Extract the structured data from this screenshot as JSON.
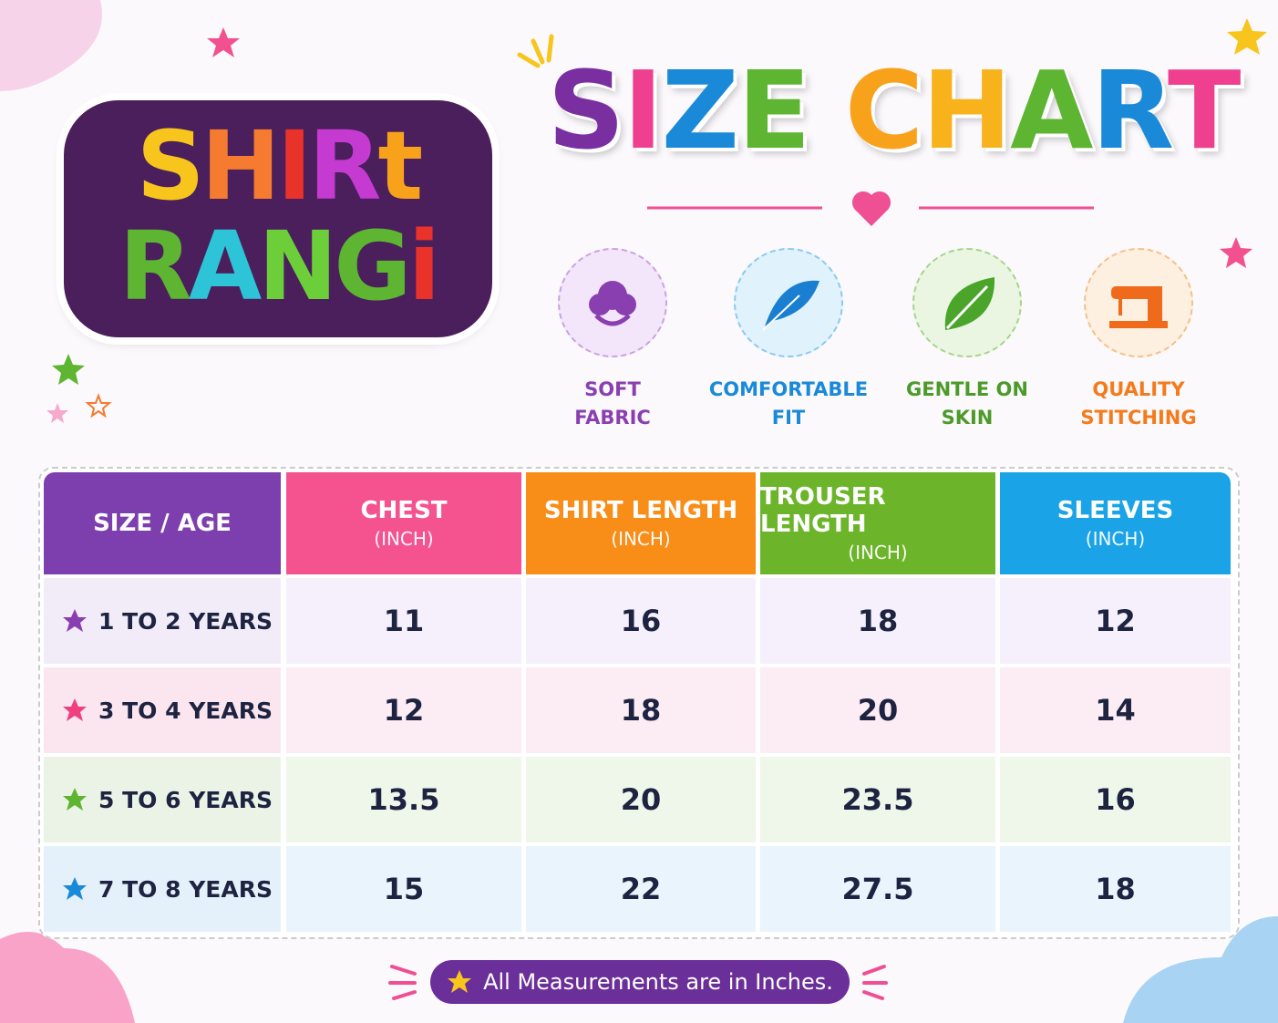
{
  "logo": {
    "line1": "SHIRt",
    "line2": "RANGi"
  },
  "title": "SIZE CHART",
  "features": [
    {
      "lines": [
        "SOFT",
        "FABRIC"
      ]
    },
    {
      "lines": [
        "COMFORTABLE",
        "FIT"
      ]
    },
    {
      "lines": [
        "GENTLE ON",
        "SKIN"
      ]
    },
    {
      "lines": [
        "QUALITY",
        "STITCHING"
      ]
    }
  ],
  "table": {
    "headers": [
      {
        "title": "SIZE / AGE"
      },
      {
        "title": "CHEST",
        "unit": "(INCH)"
      },
      {
        "title": "SHIRT LENGTH",
        "unit": "(INCH)"
      },
      {
        "title": "TROUSER LENGTH",
        "unit": "(INCH)"
      },
      {
        "title": "SLEEVES",
        "unit": "(INCH)"
      }
    ],
    "rows": [
      [
        "1 TO 2 YEARS",
        11,
        16,
        18,
        12
      ],
      [
        "3 TO 4 YEARS",
        12,
        18,
        20,
        14
      ],
      [
        "5 TO 6 YEARS",
        13.5,
        20,
        23.5,
        16
      ],
      [
        "7 TO 8 YEARS",
        15,
        22,
        27.5,
        18
      ]
    ]
  },
  "note": "All Measurements are in Inches."
}
